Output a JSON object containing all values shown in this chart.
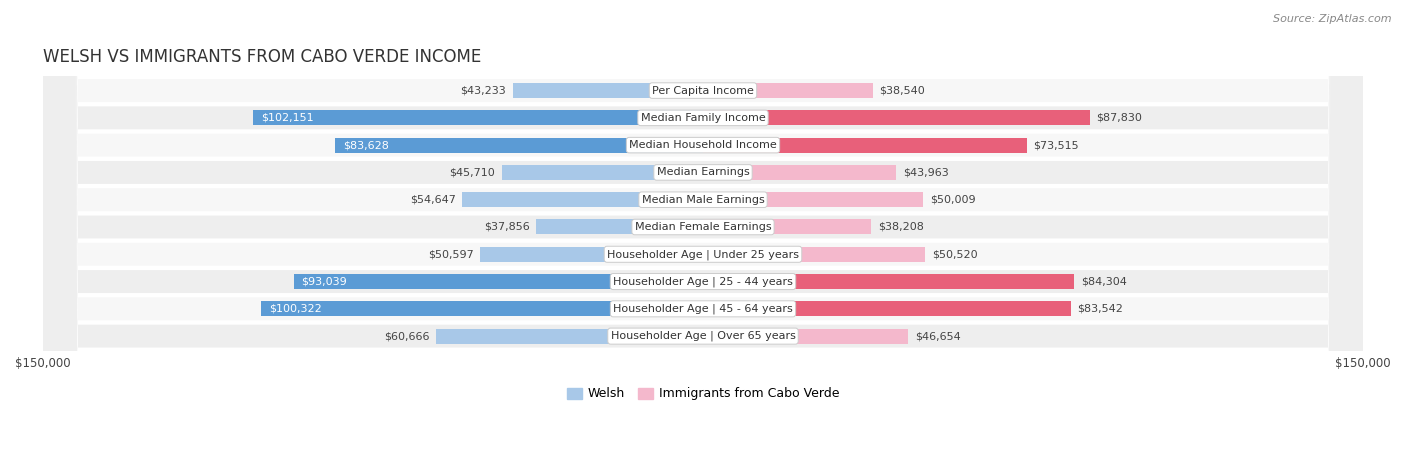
{
  "title": "Welsh vs Immigrants from Cabo Verde Income",
  "source": "Source: ZipAtlas.com",
  "categories": [
    "Per Capita Income",
    "Median Family Income",
    "Median Household Income",
    "Median Earnings",
    "Median Male Earnings",
    "Median Female Earnings",
    "Householder Age | Under 25 years",
    "Householder Age | 25 - 44 years",
    "Householder Age | 45 - 64 years",
    "Householder Age | Over 65 years"
  ],
  "welsh_values": [
    43233,
    102151,
    83628,
    45710,
    54647,
    37856,
    50597,
    93039,
    100322,
    60666
  ],
  "cabo_verde_values": [
    38540,
    87830,
    73515,
    43963,
    50009,
    38208,
    50520,
    84304,
    83542,
    46654
  ],
  "welsh_labels": [
    "$43,233",
    "$102,151",
    "$83,628",
    "$45,710",
    "$54,647",
    "$37,856",
    "$50,597",
    "$93,039",
    "$100,322",
    "$60,666"
  ],
  "cabo_verde_labels": [
    "$38,540",
    "$87,830",
    "$73,515",
    "$43,963",
    "$50,009",
    "$38,208",
    "$50,520",
    "$84,304",
    "$83,542",
    "$46,654"
  ],
  "welsh_color_light": "#a8c8e8",
  "welsh_color_dark": "#5b9bd5",
  "cabo_verde_color_light": "#f4b8cc",
  "cabo_verde_color_dark": "#e8607a",
  "max_value": 150000,
  "row_bg_odd": "#f7f7f7",
  "row_bg_even": "#eeeeee",
  "legend_welsh_color": "#a8c8e8",
  "legend_cabo_color": "#f4b8cc",
  "title_fontsize": 12,
  "source_fontsize": 8,
  "label_fontsize": 8,
  "category_fontsize": 8,
  "axis_label": "$150,000",
  "bar_height": 0.55,
  "welsh_dark_threshold": 70000,
  "cabo_dark_threshold": 65000
}
